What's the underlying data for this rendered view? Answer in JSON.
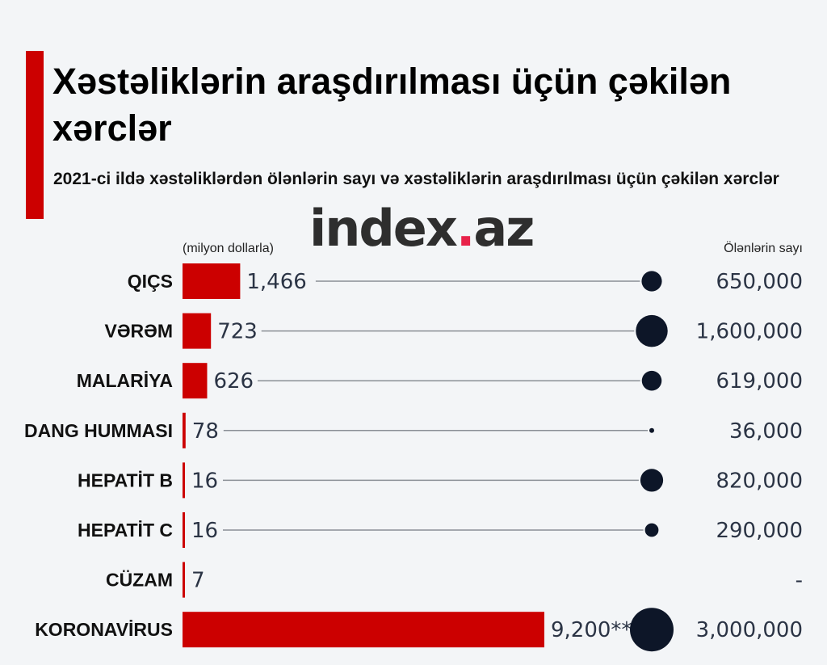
{
  "title": "Xəstəliklərin araşdırılması üçün çəkilən xərclər",
  "subtitle": "2021-ci ildə xəstəliklərdən ölənlərin sayı və xəstəliklərin araşdırılması üçün çəkilən xərclər",
  "watermark": {
    "text_main": "index",
    "text_dot": ".",
    "text_tail": "az"
  },
  "colors": {
    "accent": "#cc0000",
    "bar": "#cc0000",
    "bubble": "#0d1628",
    "line": "#8a8f96",
    "background": "#f3f5f7"
  },
  "chart_data": {
    "type": "bar",
    "left_axis_label": "(milyon dollarla)",
    "right_axis_label": "Ölənlərin sayı",
    "categories": [
      "QIÇS",
      "VƏRƏM",
      "MALARİYA",
      "DANG HUMMASI",
      "HEPATİT B",
      "HEPATİT C",
      "CÜZAM",
      "KORONAVİRUS"
    ],
    "spending_values": [
      1466,
      723,
      626,
      78,
      16,
      16,
      7,
      9200
    ],
    "spending_labels": [
      "1,466",
      "723",
      "626",
      "78",
      "16",
      "16",
      "7",
      "9,200**"
    ],
    "deaths_values": [
      650000,
      1600000,
      619000,
      36000,
      820000,
      290000,
      null,
      3000000
    ],
    "deaths_labels": [
      "650,000",
      "1,600,000",
      "619,000",
      "36,000",
      "820,000",
      "290,000",
      "-",
      "3,000,000"
    ]
  }
}
